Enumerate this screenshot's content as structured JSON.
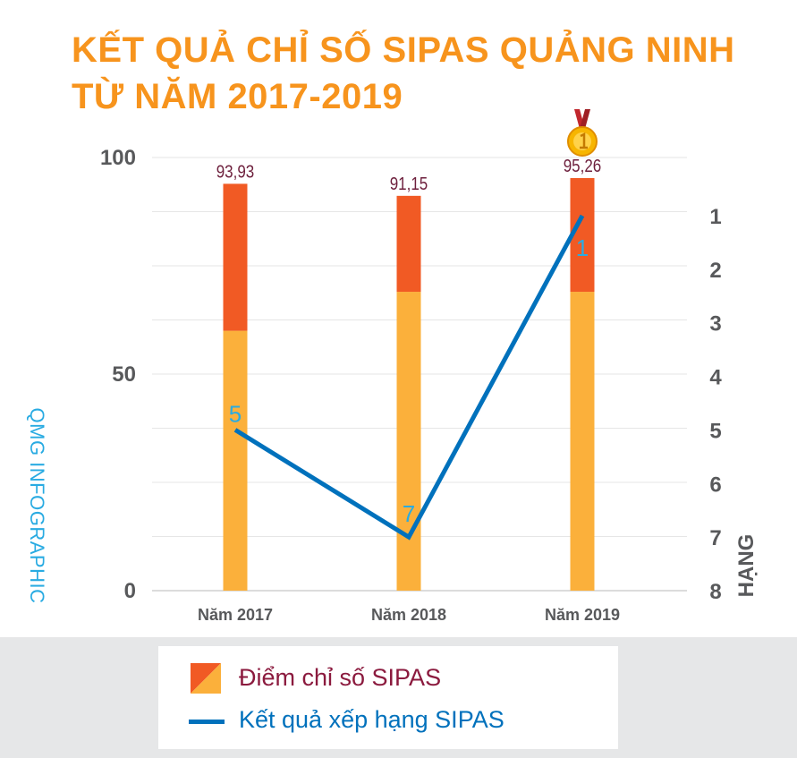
{
  "title": {
    "line1": "KẾT QUẢ CHỈ SỐ SIPAS QUẢNG NINH",
    "line2": "TỪ NĂM 2017-2019"
  },
  "watermark": "QMG INFOGRAPHIC",
  "medal_icon": "gold-medal-icon",
  "legend": {
    "score_label": "Điểm chỉ số SIPAS",
    "rank_label": "Kết quả xếp hạng SIPAS"
  },
  "colors": {
    "title": "#f7941d",
    "bar_bottom": "#fbb03b",
    "bar_top": "#f15a24",
    "line": "#0071bc",
    "rank_text": "#29abe2",
    "value_text": "#6d1f3c",
    "axis_text": "#58595b",
    "legend_score_text": "#8b1a3e",
    "legend_rank_text": "#0071bc",
    "watermark": "#29abe2",
    "gridline": "#e6e6e6",
    "legend_band": "#e6e7e8"
  },
  "chart_data": {
    "type": "bar",
    "categories": [
      "Năm 2017",
      "Năm 2018",
      "Năm 2019"
    ],
    "series": [
      {
        "name": "Điểm chỉ số SIPAS",
        "values": [
          93.93,
          91.15,
          95.26
        ],
        "value_labels": [
          "93,93",
          "91,15",
          "95,26"
        ]
      },
      {
        "name": "Kết quả xếp hạng SIPAS",
        "type": "line",
        "axis": "right",
        "values": [
          5,
          7,
          1
        ],
        "value_labels": [
          "5",
          "7",
          "1"
        ]
      }
    ],
    "bar_lower_segment_values": [
      60,
      69,
      69
    ],
    "left_axis": {
      "range": [
        0,
        100
      ],
      "tick_labels": [
        "0",
        "50",
        "100"
      ]
    },
    "right_axis": {
      "label": "HẠNG",
      "range": [
        0,
        8
      ],
      "tick_labels": [
        "1",
        "2",
        "3",
        "4",
        "5",
        "6",
        "7",
        "8"
      ],
      "inverted": true
    },
    "grid": true,
    "legend_position": "bottom"
  }
}
